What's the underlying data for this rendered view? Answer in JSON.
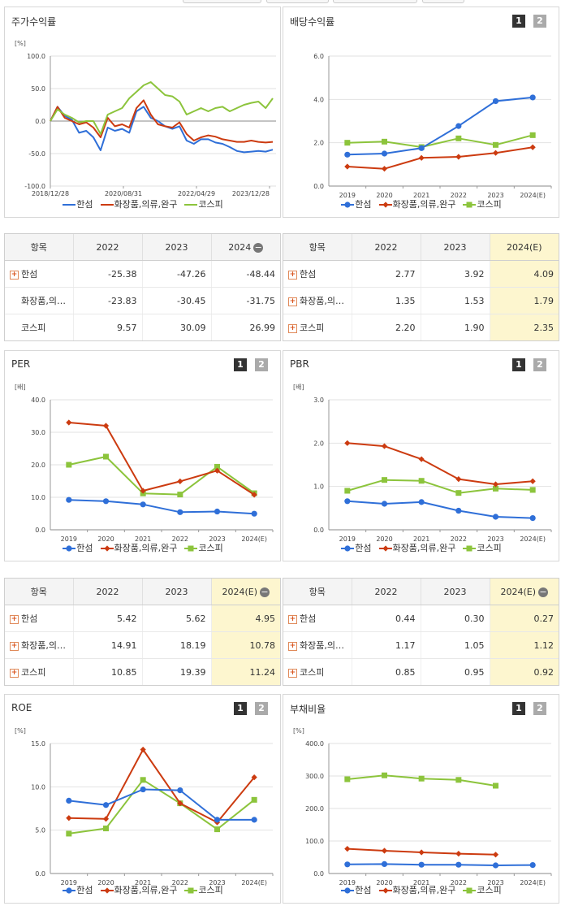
{
  "colors": {
    "s1": "#2f6fd8",
    "s2": "#cc3b10",
    "s3": "#8cc43c"
  },
  "legend": [
    "한섬",
    "화장품,의류,완구",
    "코스피"
  ],
  "page_buttons": [
    "1",
    "2"
  ],
  "charts": {
    "stock": {
      "title": "주가수익률",
      "unit": "[%]",
      "chart_data": {
        "type": "line",
        "x_ticks": [
          "2018/12/28",
          "2020/08/31",
          "2022/04/29",
          "2023/12/28"
        ],
        "y_ticks": [
          "100.0",
          "50.0",
          "0.0",
          "-50.0",
          "-100.0"
        ],
        "ylim": [
          -100,
          100
        ],
        "x": [
          0,
          2,
          4,
          6,
          8,
          10,
          12,
          14,
          16,
          18,
          20,
          22,
          24,
          26,
          28,
          30,
          32,
          34,
          36,
          38,
          40,
          42,
          44,
          46,
          48,
          50,
          52,
          54,
          56,
          58,
          60,
          62
        ],
        "series": [
          {
            "name": "한섬",
            "values": [
              0,
              22,
              8,
              2,
              -18,
              -15,
              -25,
              -45,
              -10,
              -15,
              -12,
              -18,
              15,
              22,
              5,
              0,
              -8,
              -12,
              -8,
              -30,
              -35,
              -28,
              -28,
              -33,
              -35,
              -40,
              -46,
              -48,
              -47,
              -46,
              -47,
              -44
            ]
          },
          {
            "name": "화장품,의류,완구",
            "values": [
              0,
              22,
              5,
              0,
              -5,
              -2,
              -10,
              -25,
              5,
              -8,
              -5,
              -10,
              20,
              32,
              10,
              -5,
              -8,
              -10,
              -2,
              -20,
              -30,
              -25,
              -22,
              -24,
              -28,
              -30,
              -32,
              -32,
              -30,
              -32,
              -33,
              -32
            ]
          },
          {
            "name": "코스피",
            "values": [
              0,
              18,
              10,
              5,
              -2,
              0,
              0,
              -20,
              10,
              15,
              20,
              35,
              45,
              55,
              60,
              50,
              40,
              38,
              30,
              10,
              15,
              20,
              15,
              20,
              22,
              15,
              20,
              25,
              28,
              30,
              20,
              35
            ]
          }
        ]
      }
    },
    "dividend": {
      "title": "배당수익률",
      "chart_data": {
        "type": "line",
        "categories": [
          "2019",
          "2020",
          "2021",
          "2022",
          "2023",
          "2024(E)"
        ],
        "y_ticks": [
          "6.0",
          "4.0",
          "2.0",
          "0.0"
        ],
        "ylim": [
          0,
          6
        ],
        "series": [
          {
            "name": "한섬",
            "values": [
              1.45,
              1.5,
              1.75,
              2.77,
              3.92,
              4.09
            ]
          },
          {
            "name": "화장품,의류,완구",
            "values": [
              0.9,
              0.8,
              1.3,
              1.35,
              1.53,
              1.79
            ]
          },
          {
            "name": "코스피",
            "values": [
              2.0,
              2.05,
              1.8,
              2.2,
              1.9,
              2.35
            ]
          }
        ]
      }
    },
    "per": {
      "title": "PER",
      "unit": "[배]",
      "chart_data": {
        "type": "line",
        "categories": [
          "2019",
          "2020",
          "2021",
          "2022",
          "2023",
          "2024(E)"
        ],
        "y_ticks": [
          "40.0",
          "30.0",
          "20.0",
          "10.0",
          "0.0"
        ],
        "ylim": [
          0,
          40
        ],
        "series": [
          {
            "name": "한섬",
            "values": [
              9.2,
              8.8,
              7.8,
              5.42,
              5.62,
              4.95
            ]
          },
          {
            "name": "화장품,의류,완구",
            "values": [
              33.0,
              32.0,
              12.0,
              14.91,
              18.19,
              10.78
            ]
          },
          {
            "name": "코스피",
            "values": [
              20.0,
              22.5,
              11.2,
              10.85,
              19.39,
              11.24
            ]
          }
        ]
      }
    },
    "pbr": {
      "title": "PBR",
      "unit": "[배]",
      "chart_data": {
        "type": "line",
        "categories": [
          "2019",
          "2020",
          "2021",
          "2022",
          "2023",
          "2024(E)"
        ],
        "y_ticks": [
          "3.0",
          "2.0",
          "1.0",
          "0.0"
        ],
        "ylim": [
          0,
          3
        ],
        "series": [
          {
            "name": "한섬",
            "values": [
              0.66,
              0.6,
              0.64,
              0.44,
              0.3,
              0.27
            ]
          },
          {
            "name": "화장품,의류,완구",
            "values": [
              2.0,
              1.93,
              1.63,
              1.17,
              1.05,
              1.12
            ]
          },
          {
            "name": "코스피",
            "values": [
              0.9,
              1.15,
              1.13,
              0.85,
              0.95,
              0.92
            ]
          }
        ]
      }
    },
    "roe": {
      "title": "ROE",
      "unit": "[%]",
      "chart_data": {
        "type": "line",
        "categories": [
          "2019",
          "2020",
          "2021",
          "2022",
          "2023",
          "2024(E)"
        ],
        "y_ticks": [
          "15.0",
          "10.0",
          "5.0",
          "0.0"
        ],
        "ylim": [
          0,
          15
        ],
        "series": [
          {
            "name": "한섬",
            "values": [
              8.4,
              7.9,
              9.7,
              9.6,
              6.2,
              6.2
            ]
          },
          {
            "name": "화장품,의류,완구",
            "values": [
              6.4,
              6.3,
              14.3,
              8.1,
              5.9,
              11.1
            ]
          },
          {
            "name": "코스피",
            "values": [
              4.6,
              5.2,
              10.8,
              8.1,
              5.1,
              8.5
            ]
          }
        ]
      }
    },
    "debt": {
      "title": "부채비율",
      "unit": "[%]",
      "chart_data": {
        "type": "line",
        "categories": [
          "2019",
          "2020",
          "2021",
          "2022",
          "2023",
          "2024(E)"
        ],
        "y_ticks": [
          "400.0",
          "300.0",
          "200.0",
          "100.0",
          "0.0"
        ],
        "ylim": [
          0,
          400
        ],
        "series": [
          {
            "name": "한섬",
            "values": [
              28,
              29,
              27,
              27,
              25,
              26
            ]
          },
          {
            "name": "화장품,의류,완구",
            "values": [
              76,
              70,
              65,
              61,
              58,
              null
            ]
          },
          {
            "name": "코스피",
            "values": [
              290,
              302,
              292,
              288,
              270,
              null
            ]
          }
        ]
      }
    }
  },
  "tables": {
    "stock": {
      "header": [
        "항목",
        "2022",
        "2023",
        "2024"
      ],
      "minus": "−",
      "rows": [
        {
          "label": "한섬",
          "plus": true,
          "values": [
            "-25.38",
            "-47.26",
            "-48.44"
          ]
        },
        {
          "label": "화장품,의…",
          "plus": false,
          "values": [
            "-23.83",
            "-30.45",
            "-31.75"
          ]
        },
        {
          "label": "코스피",
          "plus": false,
          "values": [
            "9.57",
            "30.09",
            "26.99"
          ]
        }
      ]
    },
    "dividend": {
      "header": [
        "항목",
        "2022",
        "2023",
        "2024(E)"
      ],
      "rows": [
        {
          "label": "한섬",
          "plus": true,
          "values": [
            "2.77",
            "3.92",
            "4.09"
          ]
        },
        {
          "label": "화장품,의…",
          "plus": true,
          "values": [
            "1.35",
            "1.53",
            "1.79"
          ]
        },
        {
          "label": "코스피",
          "plus": true,
          "values": [
            "2.20",
            "1.90",
            "2.35"
          ]
        }
      ]
    },
    "per": {
      "header": [
        "항목",
        "2022",
        "2023",
        "2024(E)"
      ],
      "minus": "−",
      "rows": [
        {
          "label": "한섬",
          "plus": true,
          "values": [
            "5.42",
            "5.62",
            "4.95"
          ]
        },
        {
          "label": "화장품,의…",
          "plus": true,
          "values": [
            "14.91",
            "18.19",
            "10.78"
          ]
        },
        {
          "label": "코스피",
          "plus": true,
          "values": [
            "10.85",
            "19.39",
            "11.24"
          ]
        }
      ]
    },
    "pbr": {
      "header": [
        "항목",
        "2022",
        "2023",
        "2024(E)"
      ],
      "minus": "−",
      "rows": [
        {
          "label": "한섬",
          "plus": true,
          "values": [
            "0.44",
            "0.30",
            "0.27"
          ]
        },
        {
          "label": "화장품,의…",
          "plus": true,
          "values": [
            "1.17",
            "1.05",
            "1.12"
          ]
        },
        {
          "label": "코스피",
          "plus": true,
          "values": [
            "0.85",
            "0.95",
            "0.92"
          ]
        }
      ]
    }
  }
}
